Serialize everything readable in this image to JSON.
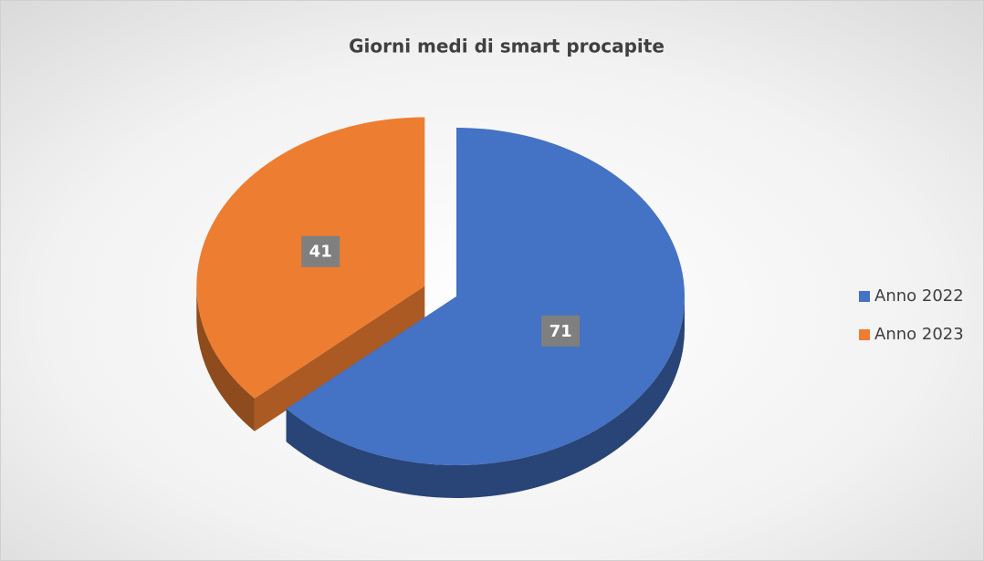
{
  "chart_data": {
    "type": "pie",
    "title": "Giorni medi di smart procapite",
    "categories": [
      "Anno 2022",
      "Anno 2023"
    ],
    "values": [
      71,
      41
    ],
    "colors": [
      "#4472c4",
      "#ed7d31"
    ],
    "legend": "right",
    "exploded": [
      false,
      true
    ]
  }
}
